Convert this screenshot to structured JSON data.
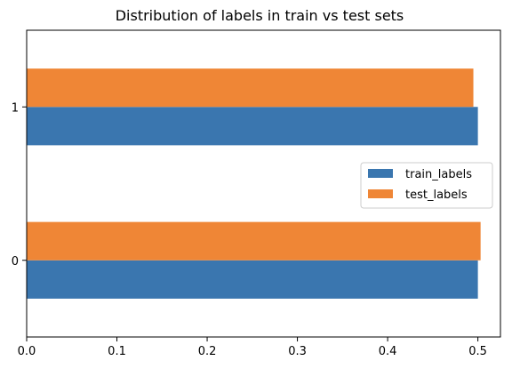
{
  "chart_data": {
    "type": "bar",
    "orientation": "horizontal",
    "title": "Distribution of labels in train vs test sets",
    "xlabel": "",
    "ylabel": "",
    "categories": [
      "0",
      "1"
    ],
    "series": [
      {
        "name": "train_labels",
        "color": "#3a76af",
        "values": [
          0.5,
          0.5
        ]
      },
      {
        "name": "test_labels",
        "color": "#ef8636",
        "values": [
          0.503,
          0.495
        ]
      }
    ],
    "xlim": [
      0,
      0.525
    ],
    "xticks": [
      "0.0",
      "0.1",
      "0.2",
      "0.3",
      "0.4",
      "0.5"
    ],
    "grid": false,
    "legend_position": "center-right"
  }
}
